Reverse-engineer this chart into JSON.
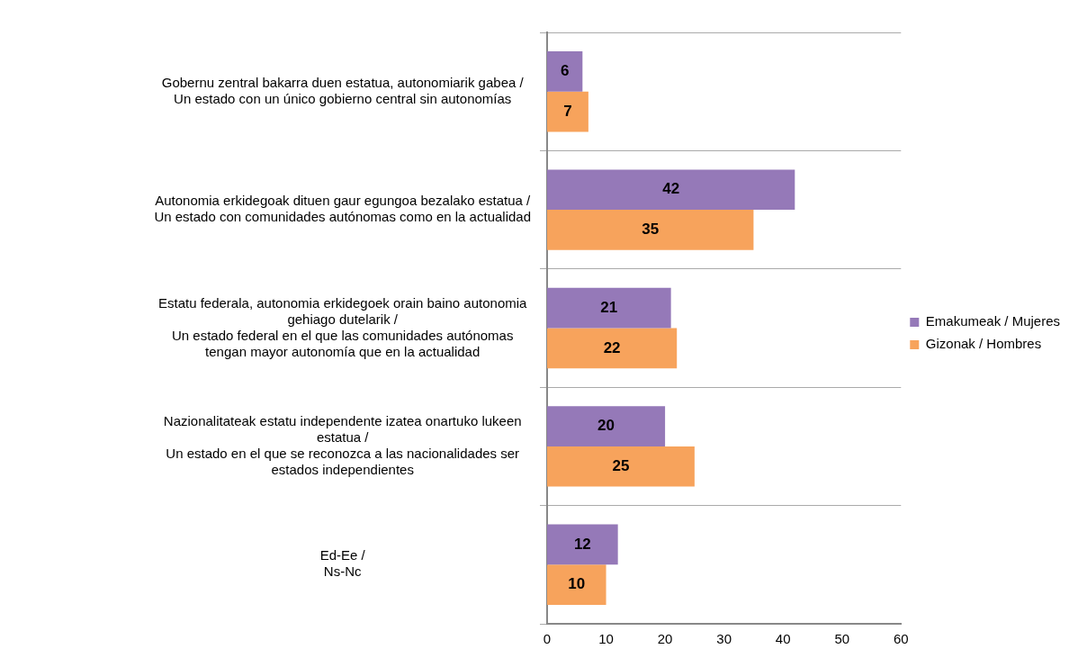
{
  "chart_data": {
    "type": "bar",
    "orientation": "horizontal",
    "categories": [
      "Gobernu zentral bakarra duen estatua, autonomiarik gabea /\nUn estado con un único gobierno central sin autonomías",
      "Autonomia erkidegoak dituen gaur egungoa bezalako estatua /\nUn estado con comunidades autónomas como en la actualidad",
      "Estatu federala, autonomia erkidegoek orain baino autonomia\ngehiago dutelarik /\nUn estado federal en el que las comunidades autónomas\ntengan mayor autonomía que en la actualidad",
      "Nazionalitateak estatu independente izatea onartuko lukeen\nestatua /\nUn estado en el que se reconozca a las nacionalidades ser\nestados independientes",
      "Ed-Ee /\nNs-Nc"
    ],
    "series": [
      {
        "name": "Emakumeak / Mujeres",
        "color": "#9579b8",
        "values": [
          6,
          42,
          21,
          20,
          12
        ]
      },
      {
        "name": "Gizonak / Hombres",
        "color": "#f7a35c",
        "values": [
          7,
          35,
          22,
          25,
          10
        ]
      }
    ],
    "xlim": [
      0,
      60
    ],
    "xticks": [
      0,
      10,
      20,
      30,
      40,
      50,
      60
    ],
    "grid": "y",
    "legend": "right",
    "data_labels": true
  }
}
